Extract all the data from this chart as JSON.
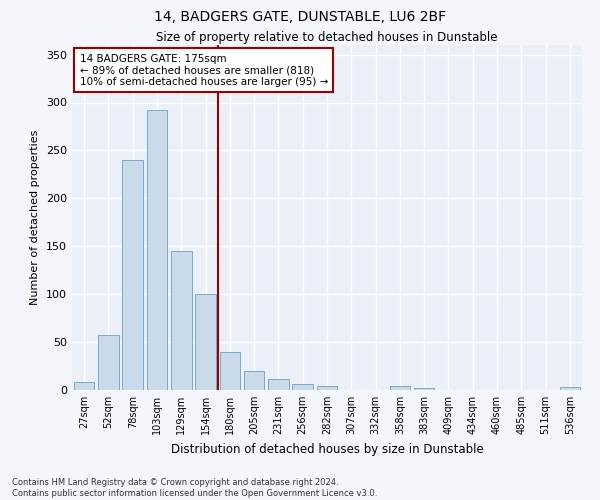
{
  "title": "14, BADGERS GATE, DUNSTABLE, LU6 2BF",
  "subtitle": "Size of property relative to detached houses in Dunstable",
  "xlabel": "Distribution of detached houses by size in Dunstable",
  "ylabel": "Number of detached properties",
  "bar_color": "#c9daea",
  "bar_edge_color": "#7aaac8",
  "background_color": "#eaeff8",
  "grid_color": "#ffffff",
  "categories": [
    "27sqm",
    "52sqm",
    "78sqm",
    "103sqm",
    "129sqm",
    "154sqm",
    "180sqm",
    "205sqm",
    "231sqm",
    "256sqm",
    "282sqm",
    "307sqm",
    "332sqm",
    "358sqm",
    "383sqm",
    "409sqm",
    "434sqm",
    "460sqm",
    "485sqm",
    "511sqm",
    "536sqm"
  ],
  "values": [
    8,
    57,
    240,
    292,
    145,
    100,
    40,
    20,
    11,
    6,
    4,
    0,
    0,
    4,
    2,
    0,
    0,
    0,
    0,
    0,
    3
  ],
  "ylim": [
    0,
    360
  ],
  "yticks": [
    0,
    50,
    100,
    150,
    200,
    250,
    300,
    350
  ],
  "vline_x": 5.5,
  "vline_color": "#990000",
  "annotation_text": "14 BADGERS GATE: 175sqm\n← 89% of detached houses are smaller (818)\n10% of semi-detached houses are larger (95) →",
  "annotation_box_color": "#990000",
  "footer_line1": "Contains HM Land Registry data © Crown copyright and database right 2024.",
  "footer_line2": "Contains public sector information licensed under the Open Government Licence v3.0.",
  "fig_bg": "#f4f6fc"
}
